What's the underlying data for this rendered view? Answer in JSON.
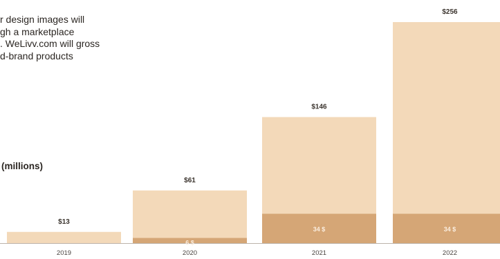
{
  "intro": {
    "lines": [
      "r design images will",
      "gh a marketplace",
      ". WeLivv.com will gross",
      "d-brand products"
    ]
  },
  "unit_label": "(millions)",
  "colors": {
    "total_bar": "#f3d9b9",
    "segment_bar": "#d5a676",
    "segment_label": "#fbeee0",
    "value_label": "#3a332d",
    "tick_label": "#4a4440",
    "baseline": "#bcb3aa"
  },
  "chart_data": {
    "type": "bar",
    "categories": [
      "2019",
      "2020",
      "2021",
      "2022"
    ],
    "series": [
      {
        "values": [
          13,
          61,
          146,
          256
        ],
        "value_labels": [
          "$13",
          "$61",
          "$146",
          "$256"
        ]
      },
      {
        "values": [
          0,
          6,
          34,
          34
        ],
        "value_labels": [
          "",
          "6 $",
          "34 $",
          "34 $"
        ]
      }
    ],
    "ylim": [
      0,
      256
    ],
    "grid": false,
    "legend": "none"
  }
}
